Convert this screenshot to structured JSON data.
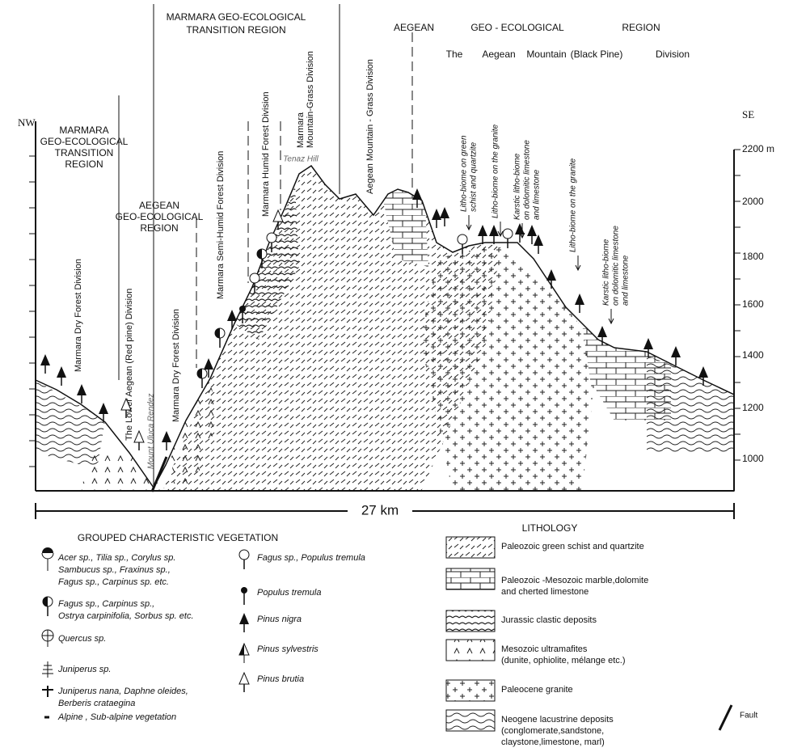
{
  "axis": {
    "left_label": "NW",
    "right_label": "SE",
    "altitudes": [
      "2200 m",
      "2000",
      "1800",
      "1600",
      "1400",
      "1200",
      "1000"
    ],
    "scale": "27 km"
  },
  "regions": [
    {
      "lines": [
        "MARMARA",
        "GEO-ECOLOGICAL",
        "TRANSITION",
        "REGION"
      ]
    },
    {
      "lines": [
        "AEGEAN",
        "GEO-ECOLOGICAL",
        "REGION"
      ]
    },
    {
      "lines": [
        "MARMARA GEO-ECOLOGICAL",
        "TRANSITION  REGION"
      ]
    },
    {
      "lines": [
        "AEGEAN",
        "GEO - ECOLOGICAL",
        "REGION"
      ]
    },
    {
      "lines": [
        "The",
        "Aegean",
        "Mountain",
        "(Black Pine)",
        "Division"
      ]
    }
  ],
  "divisions": [
    {
      "lines": [
        "Marmara Dry Forest Division"
      ]
    },
    {
      "lines": [
        "The Lower Aegean (Red pine) Division"
      ]
    },
    {
      "lines": [
        "Marmara Dry Forest Division"
      ]
    },
    {
      "lines": [
        "Marmara Semi-Humid Forest Division"
      ]
    },
    {
      "lines": [
        "Marmara Humid Forest Division"
      ]
    },
    {
      "lines": [
        "Marmara",
        "Mountain-Grass Division"
      ]
    },
    {
      "lines": [
        "Aegean Mountain - Grass Division"
      ]
    },
    {
      "lines": [
        "Litho-biome on green",
        "schist and quartzite"
      ]
    },
    {
      "lines": [
        "Litho-biome on the granite"
      ]
    },
    {
      "lines": [
        "Karstic litho-biome",
        "on dolomitic limestone",
        "and limestone"
      ]
    },
    {
      "lines": [
        "Litho-biome on the granite"
      ]
    },
    {
      "lines": [
        "Karstic litho-biome",
        "on dolomitic limestone",
        "and limestone"
      ]
    }
  ],
  "places": [
    "Mount Uluca Rendez",
    "Tenaz Hill"
  ],
  "legend_vegetation": {
    "title": "GROUPED CHARACTERISTIC VEGETATION",
    "items": [
      {
        "lines": [
          "Acer sp., Tilia sp., Corylus sp.",
          "Sambucus sp., Fraxinus sp.,",
          "Fagus sp., Carpinus sp. etc."
        ]
      },
      {
        "lines": [
          "Fagus sp., Carpinus sp.,",
          "Ostrya carpinifolia, Sorbus sp. etc."
        ]
      },
      {
        "lines": [
          "Quercus sp."
        ]
      },
      {
        "lines": [
          "Juniperus sp."
        ]
      },
      {
        "lines": [
          "Juniperus nana, Daphne oleides,",
          "Berberis crataegina"
        ]
      },
      {
        "lines": [
          "Alpine , Sub-alpine vegetation"
        ]
      },
      {
        "lines": [
          "Fagus sp., Populus tremula"
        ]
      },
      {
        "lines": [
          "Populus tremula"
        ]
      },
      {
        "lines": [
          "Pinus nigra"
        ]
      },
      {
        "lines": [
          "Pinus sylvestris"
        ]
      },
      {
        "lines": [
          "Pinus brutia"
        ]
      }
    ]
  },
  "legend_lithology": {
    "title": "LITHOLOGY",
    "items": [
      {
        "lines": [
          "Paleozoic green schist and quartzite"
        ]
      },
      {
        "lines": [
          "Paleozoic -Mesozoic marble,dolomite",
          "and cherted limestone"
        ]
      },
      {
        "lines": [
          "Jurassic clastic deposits"
        ]
      },
      {
        "lines": [
          "Mesozoic ultramafites",
          "(dunite, ophiolite, mélange etc.)"
        ]
      },
      {
        "lines": [
          "Paleocene granite"
        ]
      },
      {
        "lines": [
          "Neogene lacustrine deposits",
          "(conglomerate,sandstone,",
          "claystone,limestone, marl)"
        ]
      }
    ]
  },
  "fault": "Fault"
}
